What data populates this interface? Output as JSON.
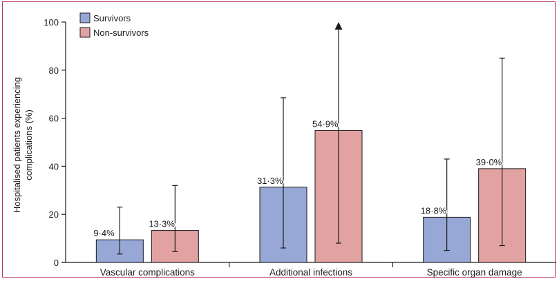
{
  "chart_data": {
    "type": "bar",
    "ylabel": "Hospitalised patients experiencing complications (%)",
    "ylim": [
      0,
      100
    ],
    "yticks": [
      0,
      20,
      40,
      60,
      80,
      100
    ],
    "categories": [
      "Vascular complications",
      "Additional infections",
      "Specific organ damage"
    ],
    "legend_position": "top-left",
    "series": [
      {
        "name": "Survivors",
        "color": "#97a8d6",
        "values": [
          9.4,
          31.3,
          18.8
        ],
        "labels": [
          "9·4%",
          "31·3%",
          "18·8%"
        ],
        "ci_low": [
          3.5,
          6,
          5
        ],
        "ci_high": [
          23,
          68.5,
          43
        ],
        "ci_high_open": [
          false,
          false,
          false
        ]
      },
      {
        "name": "Non-survivors",
        "color": "#e3a2a2",
        "values": [
          13.3,
          54.9,
          39.0
        ],
        "labels": [
          "13·3%",
          "54·9%",
          "39·0%"
        ],
        "ci_low": [
          4.5,
          8,
          7
        ],
        "ci_high": [
          32,
          100,
          85
        ],
        "ci_high_open": [
          false,
          true,
          false
        ]
      }
    ]
  }
}
